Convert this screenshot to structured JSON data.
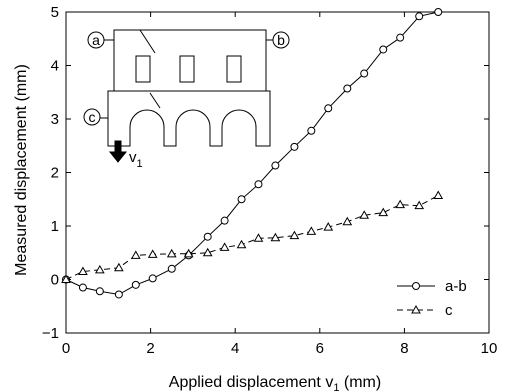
{
  "chart_data": {
    "type": "line",
    "xlabel": "Applied displacement v",
    "xlabel_sub": "1",
    "xlabel_unit": " (mm)",
    "ylabel": "Measured displacement (mm)",
    "xlim": [
      0,
      10
    ],
    "ylim": [
      -1,
      5
    ],
    "xticks": [
      0,
      2,
      4,
      6,
      8,
      10
    ],
    "yticks": [
      -1,
      0,
      1,
      2,
      3,
      4,
      5
    ],
    "grid": false,
    "legend_position": "bottom-right",
    "series": [
      {
        "name": "a-b",
        "marker": "circle",
        "line": "solid",
        "color": "#000000",
        "x": [
          0,
          0.4,
          0.8,
          1.25,
          1.65,
          2.05,
          2.5,
          2.9,
          3.35,
          3.75,
          4.15,
          4.55,
          4.95,
          5.4,
          5.8,
          6.2,
          6.65,
          7.05,
          7.5,
          7.9,
          8.35,
          8.8
        ],
        "y": [
          0,
          -0.15,
          -0.22,
          -0.28,
          -0.1,
          0.02,
          0.2,
          0.45,
          0.8,
          1.1,
          1.5,
          1.78,
          2.13,
          2.48,
          2.78,
          3.2,
          3.57,
          3.85,
          4.3,
          4.52,
          4.92,
          5.0
        ]
      },
      {
        "name": "c",
        "marker": "triangle",
        "line": "dashed",
        "color": "#000000",
        "x": [
          0,
          0.4,
          0.8,
          1.25,
          1.65,
          2.05,
          2.5,
          2.9,
          3.35,
          3.75,
          4.15,
          4.55,
          4.95,
          5.4,
          5.8,
          6.2,
          6.65,
          7.05,
          7.5,
          7.9,
          8.35,
          8.8
        ],
        "y": [
          0,
          0.15,
          0.18,
          0.22,
          0.45,
          0.47,
          0.48,
          0.48,
          0.5,
          0.6,
          0.65,
          0.77,
          0.78,
          0.82,
          0.9,
          0.98,
          1.08,
          1.2,
          1.25,
          1.4,
          1.38,
          1.57
        ]
      }
    ],
    "inset": {
      "label_a": "a",
      "label_b": "b",
      "label_c": "c",
      "arrow_label": "v",
      "arrow_label_sub": "1"
    }
  }
}
